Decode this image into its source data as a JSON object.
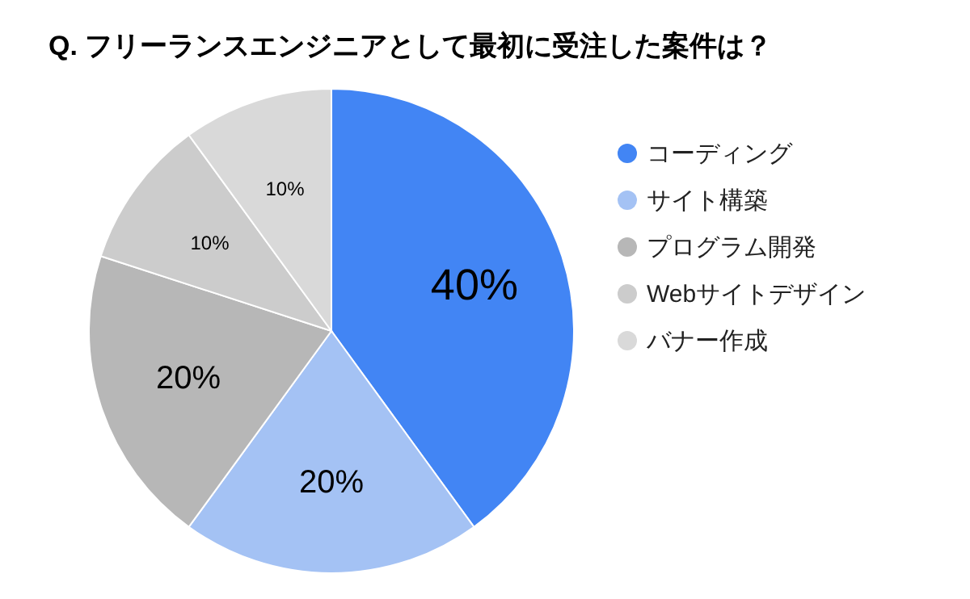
{
  "chart_data": {
    "type": "pie",
    "title": "Q. フリーランスエンジニアとして最初に受注した案件は？",
    "categories": [
      "コーディング",
      "サイト構築",
      "プログラム開発",
      "Webサイトデザイン",
      "バナー作成"
    ],
    "values": [
      40,
      20,
      20,
      10,
      10
    ],
    "colors": [
      "#4285f4",
      "#a4c2f4",
      "#b7b7b7",
      "#cccccc",
      "#d9d9d9"
    ],
    "value_labels": [
      "40%",
      "20%",
      "20%",
      "10%",
      "10%"
    ],
    "legend": "right"
  }
}
